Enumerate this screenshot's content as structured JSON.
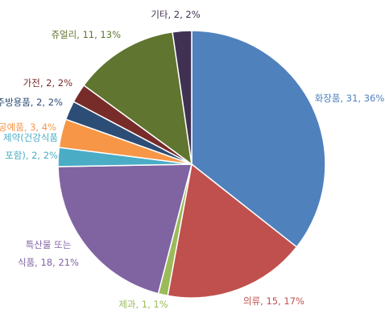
{
  "chart_data": {
    "type": "pie",
    "categories": [
      "화장품",
      "의류",
      "제과",
      "특산물 또는\n식품",
      "제약(건강식품\n포함)",
      "공예품",
      "주방용품",
      "가전",
      "쥬얼리",
      "기타"
    ],
    "values": [
      31,
      15,
      1,
      18,
      2,
      3,
      2,
      2,
      11,
      2
    ],
    "value_labels": [
      "화장품, 31, 36%",
      "의류, 15, 17%",
      "제과, 1, 1%",
      "특산물 또는\n식품, 18, 21%",
      "제약(건강식품\n포함), 2, 2%",
      "공예품, 3, 4%",
      "주방용품, 2, 2%",
      "가전, 2, 2%",
      "쥬얼리, 11, 13%",
      "기타, 2, 2%"
    ],
    "colors": [
      "#4f81bd",
      "#c0504d",
      "#9bbb59",
      "#8064a2",
      "#4bacc6",
      "#f79646",
      "#2c4d75",
      "#772c2a",
      "#5f7530",
      "#403152"
    ]
  }
}
